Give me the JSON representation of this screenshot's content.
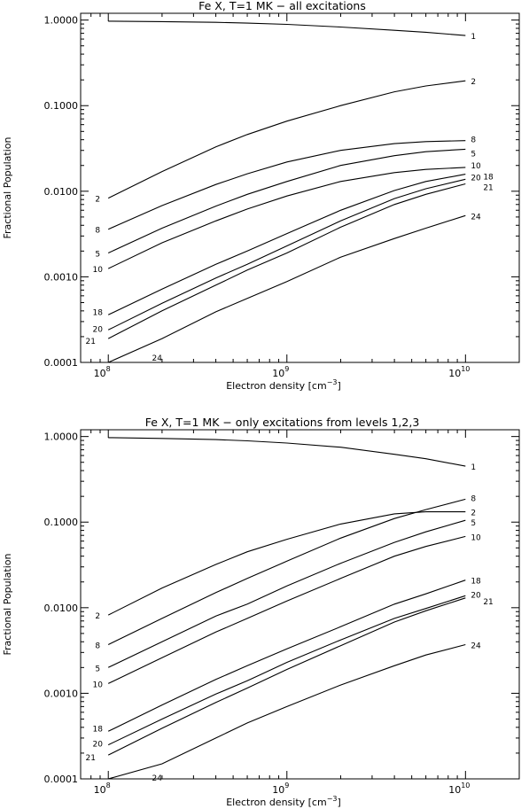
{
  "chart_data": [
    {
      "type": "line",
      "title": "Fe X, T=1 MK − all excitations",
      "xlabel": "Electron density [cm",
      "xlabel_sup": "−3",
      "xlabel_close": "]",
      "ylabel": "Fractional Population",
      "xscale": "log",
      "yscale": "log",
      "xlim": [
        70000000.0,
        20000000000.0
      ],
      "ylim": [
        0.0001,
        1.2
      ],
      "x_tick_labels": [
        {
          "value": 100000000.0,
          "base": "10",
          "exp": "8"
        },
        {
          "value": 1000000000.0,
          "base": "10",
          "exp": "9"
        },
        {
          "value": 10000000000.0,
          "base": "10",
          "exp": "10"
        }
      ],
      "y_tick_labels": [
        {
          "value": 1.0,
          "text": "1.0000"
        },
        {
          "value": 0.1,
          "text": "0.1000"
        },
        {
          "value": 0.01,
          "text": "0.0100"
        },
        {
          "value": 0.001,
          "text": "0.0010"
        },
        {
          "value": 0.0001,
          "text": "0.0001"
        }
      ],
      "x": [
        100000000.0,
        200000000.0,
        400000000.0,
        600000000.0,
        1000000000.0,
        2000000000.0,
        4000000000.0,
        6000000000.0,
        10000000000.0
      ],
      "series": [
        {
          "label": "1",
          "label_left": "",
          "values": [
            0.97,
            0.96,
            0.94,
            0.92,
            0.89,
            0.83,
            0.76,
            0.72,
            0.66
          ]
        },
        {
          "label": "2",
          "label_left": "2",
          "values": [
            0.0083,
            0.017,
            0.033,
            0.046,
            0.066,
            0.1,
            0.145,
            0.17,
            0.195
          ]
        },
        {
          "label": "8",
          "label_left": "8",
          "values": [
            0.0036,
            0.0068,
            0.012,
            0.016,
            0.022,
            0.03,
            0.036,
            0.038,
            0.039
          ]
        },
        {
          "label": "5",
          "label_left": "5",
          "values": [
            0.0019,
            0.0037,
            0.0067,
            0.0092,
            0.013,
            0.02,
            0.026,
            0.029,
            0.031
          ]
        },
        {
          "label": "10",
          "label_left": "10",
          "values": [
            0.00125,
            0.0025,
            0.0045,
            0.0062,
            0.0088,
            0.013,
            0.0165,
            0.018,
            0.019
          ]
        },
        {
          "label": "18",
          "label_left": "18",
          "values": [
            0.00036,
            0.00072,
            0.0014,
            0.002,
            0.0032,
            0.006,
            0.0102,
            0.013,
            0.0158
          ]
        },
        {
          "label": "20",
          "label_left": "20",
          "values": [
            0.00024,
            0.00049,
            0.00097,
            0.0014,
            0.0023,
            0.0045,
            0.0082,
            0.0107,
            0.0138
          ]
        },
        {
          "label": "21",
          "label_left": "21",
          "values": [
            0.00019,
            0.0004,
            0.0008,
            0.0012,
            0.0019,
            0.0038,
            0.007,
            0.0092,
            0.0122
          ]
        },
        {
          "label": "24",
          "label_left": "24",
          "values": [
            8.3e-05,
            0.00019,
            0.00039,
            0.00056,
            0.00088,
            0.0017,
            0.0028,
            0.0037,
            0.0052
          ]
        }
      ]
    },
    {
      "type": "line",
      "title": "Fe X, T=1 MK − only excitations from levels 1,2,3",
      "xlabel": "Electron density [cm",
      "xlabel_sup": "−3",
      "xlabel_close": "]",
      "ylabel": "Fractional Population",
      "xscale": "log",
      "yscale": "log",
      "xlim": [
        70000000.0,
        20000000000.0
      ],
      "ylim": [
        0.0001,
        1.2
      ],
      "x_tick_labels": [
        {
          "value": 100000000.0,
          "base": "10",
          "exp": "8"
        },
        {
          "value": 1000000000.0,
          "base": "10",
          "exp": "9"
        },
        {
          "value": 10000000000.0,
          "base": "10",
          "exp": "10"
        }
      ],
      "y_tick_labels": [
        {
          "value": 1.0,
          "text": "1.0000"
        },
        {
          "value": 0.1,
          "text": "0.1000"
        },
        {
          "value": 0.01,
          "text": "0.0100"
        },
        {
          "value": 0.001,
          "text": "0.0010"
        },
        {
          "value": 0.0001,
          "text": "0.0001"
        }
      ],
      "x": [
        100000000.0,
        200000000.0,
        400000000.0,
        600000000.0,
        1000000000.0,
        2000000000.0,
        4000000000.0,
        6000000000.0,
        10000000000.0
      ],
      "series": [
        {
          "label": "1",
          "label_left": "",
          "values": [
            0.97,
            0.95,
            0.92,
            0.89,
            0.84,
            0.75,
            0.62,
            0.55,
            0.45
          ]
        },
        {
          "label": "8",
          "label_left": "8",
          "values": [
            0.0037,
            0.0075,
            0.015,
            0.022,
            0.035,
            0.065,
            0.11,
            0.14,
            0.185
          ]
        },
        {
          "label": "2",
          "label_left": "2",
          "values": [
            0.0082,
            0.017,
            0.032,
            0.045,
            0.063,
            0.095,
            0.125,
            0.132,
            0.132
          ]
        },
        {
          "label": "5",
          "label_left": "5",
          "values": [
            0.002,
            0.004,
            0.008,
            0.011,
            0.018,
            0.033,
            0.058,
            0.077,
            0.105
          ]
        },
        {
          "label": "10",
          "label_left": "10",
          "values": [
            0.0013,
            0.0026,
            0.0052,
            0.0075,
            0.012,
            0.022,
            0.04,
            0.052,
            0.068
          ]
        },
        {
          "label": "18",
          "label_left": "18",
          "values": [
            0.00036,
            0.00073,
            0.00145,
            0.0021,
            0.0033,
            0.006,
            0.011,
            0.0145,
            0.021
          ]
        },
        {
          "label": "20",
          "label_left": "20",
          "values": [
            0.00025,
            0.0005,
            0.00098,
            0.0014,
            0.0023,
            0.0042,
            0.0075,
            0.0098,
            0.0138
          ]
        },
        {
          "label": "21",
          "label_left": "21",
          "values": [
            0.00019,
            0.00039,
            0.00078,
            0.00115,
            0.0019,
            0.0036,
            0.0068,
            0.0092,
            0.013
          ]
        },
        {
          "label": "24",
          "label_left": "24",
          "values": [
            7.5e-05,
            0.00015,
            0.0003,
            0.00045,
            0.0007,
            0.00125,
            0.0021,
            0.0028,
            0.0037
          ]
        }
      ]
    }
  ]
}
